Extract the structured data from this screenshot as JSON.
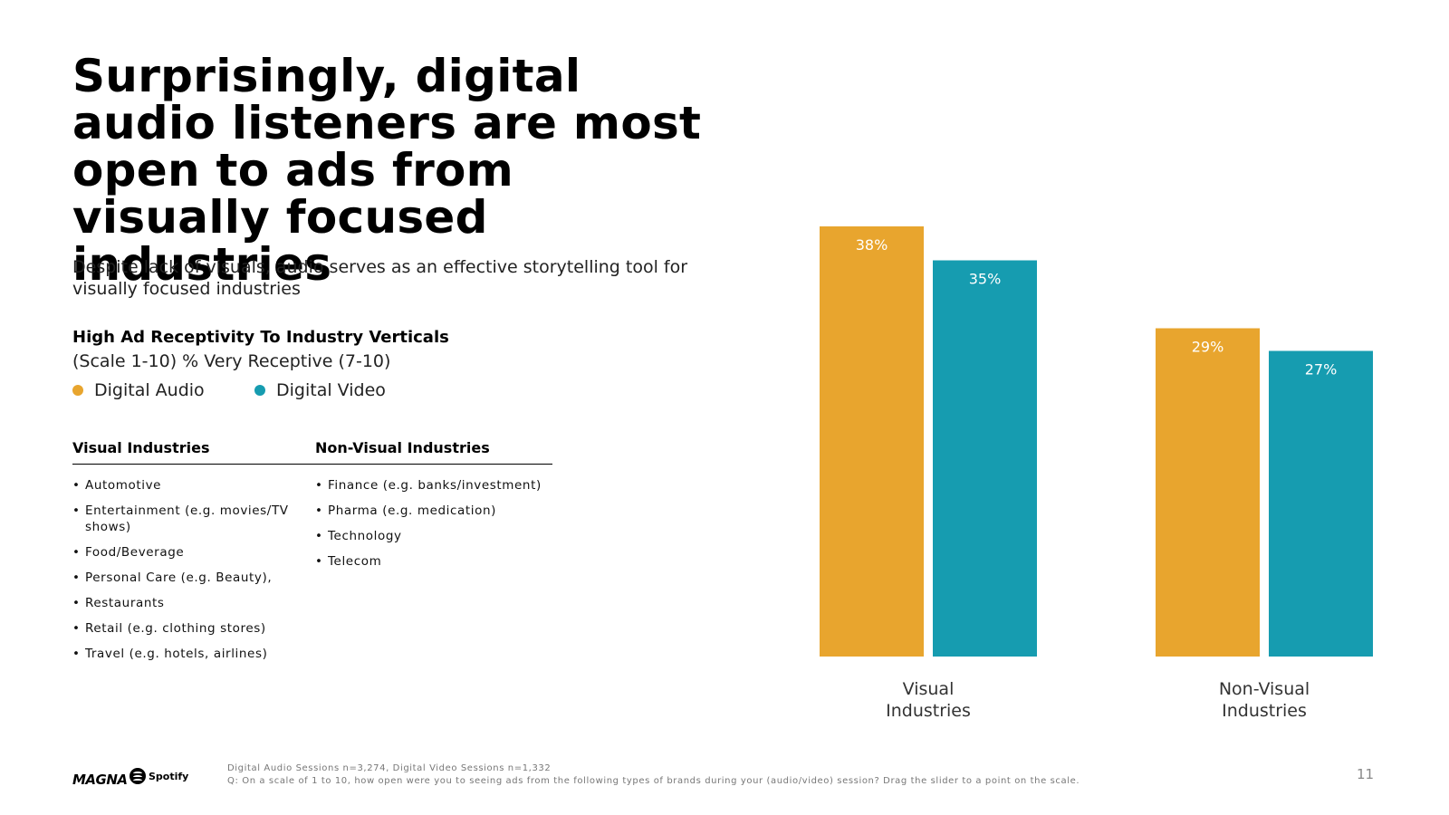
{
  "title": "Surprisingly, digital audio listeners are most open to ads from visually focused industries",
  "subtitle": "Despite lack of visuals, audio serves as an effective storytelling tool for visually focused industries",
  "section": {
    "title": "High Ad Receptivity To Industry Verticals",
    "scale": "(Scale 1-10) % Very Receptive (7-10)"
  },
  "legend": [
    {
      "label": "Digital Audio",
      "color": "#E8A52E"
    },
    {
      "label": "Digital Video",
      "color": "#169CB0"
    }
  ],
  "industries": {
    "visual_header": "Visual Industries",
    "nonvisual_header": "Non-Visual Industries",
    "visual": [
      "Automotive",
      "Entertainment (e.g. movies/TV shows)",
      "Food/Beverage",
      "Personal Care (e.g. Beauty),",
      "Restaurants",
      "Retail (e.g. clothing stores)",
      "Travel (e.g. hotels, airlines)"
    ],
    "nonvisual": [
      "Finance (e.g. banks/investment)",
      "Pharma (e.g. medication)",
      "Technology",
      "Telecom"
    ]
  },
  "chart_data": {
    "type": "bar",
    "title": "High Ad Receptivity To Industry Verticals",
    "xlabel": "",
    "ylabel": "% Very Receptive (7-10)",
    "ylim": [
      0,
      38
    ],
    "grid": false,
    "categories": [
      [
        "Visual",
        "Industries"
      ],
      [
        "Non-Visual",
        "Industries"
      ]
    ],
    "series": [
      {
        "name": "Digital Audio",
        "color": "#E8A52E",
        "values": [
          38,
          29
        ],
        "labels": [
          "38%",
          "29%"
        ]
      },
      {
        "name": "Digital Video",
        "color": "#169CB0",
        "values": [
          35,
          27
        ],
        "labels": [
          "35%",
          "27%"
        ]
      }
    ]
  },
  "footer": {
    "logo_magna": "MAGNA",
    "logo_spotify": "Spotify",
    "note1": "Digital Audio Sessions n=3,274, Digital Video Sessions n=1,332",
    "note2": "Q: On a scale of 1 to 10, how open were you to seeing ads from the following types of brands during your (audio/video) session? Drag the slider to a point on the scale.",
    "page_number": "11"
  }
}
